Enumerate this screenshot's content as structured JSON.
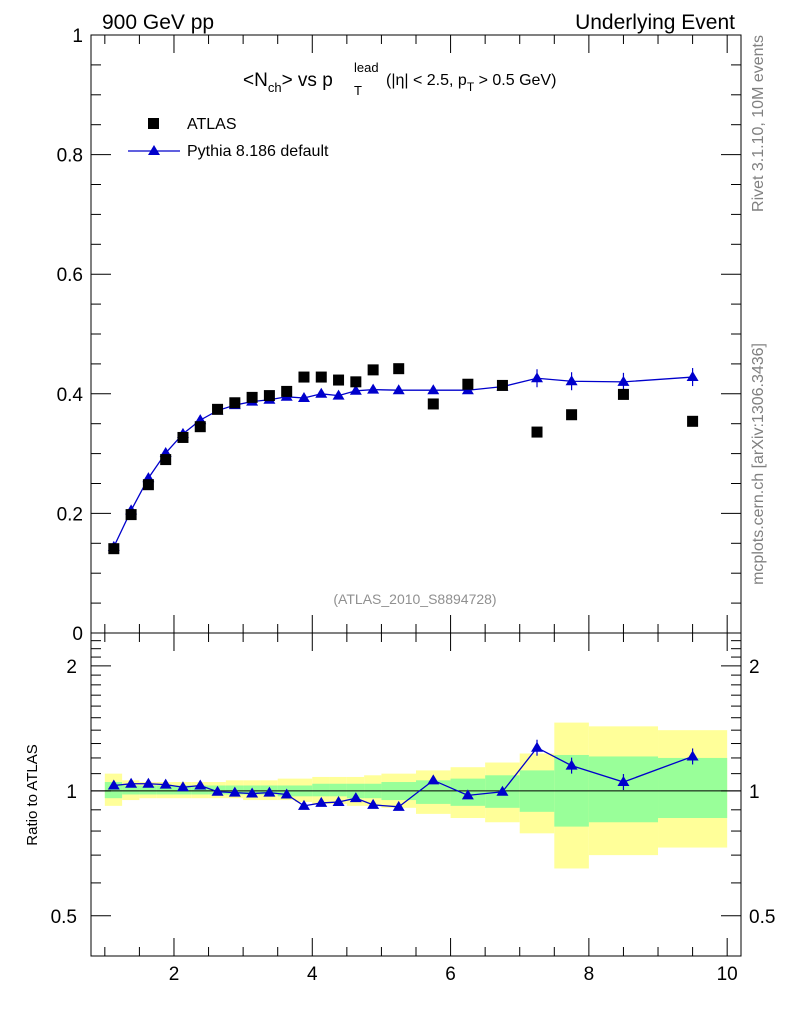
{
  "header": {
    "left": "900 GeV pp",
    "right": "Underlying Event"
  },
  "side_text": {
    "top": "Rivet 3.1.10,  10M events",
    "bottom": "mcplots.cern.ch [arXiv:1306.3436]"
  },
  "chart_data": [
    {
      "type": "scatter",
      "panel": "main",
      "title": "<N_ch> vs p_T^lead (|η| < 2.5, p_T > 0.5 GeV)",
      "title_parts": {
        "n": "<N",
        "ch": "ch",
        "gt": "> vs p",
        "lead": "lead",
        "T": "T",
        "cut1": "(|η| < 2.5, p",
        "cut2": " > 0.5 GeV)"
      },
      "watermark": "(ATLAS_2010_S8894728)",
      "xlim": [
        0.8,
        10.2
      ],
      "ylim": [
        0,
        1
      ],
      "yticks": [
        "0",
        "0.2",
        "0.4",
        "0.6",
        "0.8",
        "1"
      ],
      "legend_position": "top-left",
      "series": [
        {
          "name": "ATLAS",
          "marker": "square",
          "color": "#000000",
          "x": [
            1.13,
            1.38,
            1.63,
            1.88,
            2.13,
            2.38,
            2.63,
            2.88,
            3.13,
            3.38,
            3.63,
            3.88,
            4.13,
            4.38,
            4.63,
            4.88,
            5.25,
            5.75,
            6.25,
            6.75,
            7.25,
            7.75,
            8.5,
            9.5
          ],
          "y": [
            0.141,
            0.198,
            0.248,
            0.29,
            0.327,
            0.345,
            0.374,
            0.385,
            0.394,
            0.397,
            0.404,
            0.428,
            0.428,
            0.423,
            0.42,
            0.44,
            0.442,
            0.383,
            0.416,
            0.414,
            0.336,
            0.365,
            0.399,
            0.354
          ]
        },
        {
          "name": "Pythia 8.186 default",
          "marker": "triangle",
          "color": "#0000cc",
          "x": [
            1.13,
            1.38,
            1.63,
            1.88,
            2.13,
            2.38,
            2.63,
            2.88,
            3.13,
            3.38,
            3.63,
            3.88,
            4.13,
            4.38,
            4.63,
            4.88,
            5.25,
            5.75,
            6.25,
            6.75,
            7.25,
            7.75,
            8.5,
            9.5
          ],
          "y": [
            0.144,
            0.205,
            0.259,
            0.301,
            0.333,
            0.356,
            0.372,
            0.381,
            0.387,
            0.39,
            0.395,
            0.393,
            0.4,
            0.397,
            0.405,
            0.407,
            0.406,
            0.406,
            0.406,
            0.412,
            0.426,
            0.421,
            0.42,
            0.428
          ]
        }
      ]
    },
    {
      "type": "line",
      "panel": "ratio",
      "ylabel": "Ratio to ATLAS",
      "xlim": [
        0.8,
        10.2
      ],
      "ylim": [
        0.4,
        2.4
      ],
      "yticks": [
        "0.5",
        "1",
        "2"
      ],
      "xticks": [
        "2",
        "4",
        "6",
        "8",
        "10"
      ],
      "bands": {
        "edges": [
          1.0,
          1.25,
          1.5,
          1.75,
          2.0,
          2.25,
          2.5,
          2.75,
          3.0,
          3.25,
          3.5,
          3.75,
          4.0,
          4.25,
          4.5,
          4.75,
          5.0,
          5.5,
          6.0,
          6.5,
          7.0,
          7.5,
          8.0,
          9.0,
          10.0
        ],
        "yellow_lo": [
          0.92,
          0.95,
          0.96,
          0.96,
          0.96,
          0.96,
          0.96,
          0.96,
          0.95,
          0.95,
          0.95,
          0.94,
          0.93,
          0.93,
          0.92,
          0.92,
          0.91,
          0.88,
          0.86,
          0.84,
          0.79,
          0.65,
          0.7,
          0.73
        ],
        "yellow_hi": [
          1.1,
          1.06,
          1.05,
          1.05,
          1.05,
          1.05,
          1.05,
          1.06,
          1.06,
          1.06,
          1.07,
          1.07,
          1.08,
          1.08,
          1.08,
          1.09,
          1.1,
          1.12,
          1.14,
          1.17,
          1.23,
          1.46,
          1.43,
          1.4
        ],
        "green_lo": [
          0.96,
          0.98,
          0.98,
          0.98,
          0.98,
          0.98,
          0.98,
          0.98,
          0.98,
          0.98,
          0.97,
          0.97,
          0.97,
          0.97,
          0.96,
          0.96,
          0.95,
          0.93,
          0.92,
          0.91,
          0.89,
          0.82,
          0.84,
          0.86
        ],
        "green_hi": [
          1.05,
          1.03,
          1.03,
          1.03,
          1.03,
          1.03,
          1.03,
          1.03,
          1.03,
          1.03,
          1.03,
          1.03,
          1.04,
          1.04,
          1.04,
          1.04,
          1.05,
          1.06,
          1.07,
          1.09,
          1.12,
          1.22,
          1.21,
          1.2
        ]
      },
      "series": [
        {
          "name": "Pythia 8.186 default / ATLAS",
          "color": "#0000cc",
          "x": [
            1.13,
            1.38,
            1.63,
            1.88,
            2.13,
            2.38,
            2.63,
            2.88,
            3.13,
            3.38,
            3.63,
            3.88,
            4.13,
            4.38,
            4.63,
            4.88,
            5.25,
            5.75,
            6.25,
            6.75,
            7.25,
            7.75,
            8.5,
            9.5
          ],
          "y": [
            1.03,
            1.04,
            1.04,
            1.035,
            1.02,
            1.03,
            0.995,
            0.99,
            0.985,
            0.99,
            0.98,
            0.92,
            0.935,
            0.94,
            0.96,
            0.925,
            0.915,
            1.06,
            0.975,
            0.995,
            1.27,
            1.15,
            1.05,
            1.21
          ]
        }
      ]
    }
  ]
}
